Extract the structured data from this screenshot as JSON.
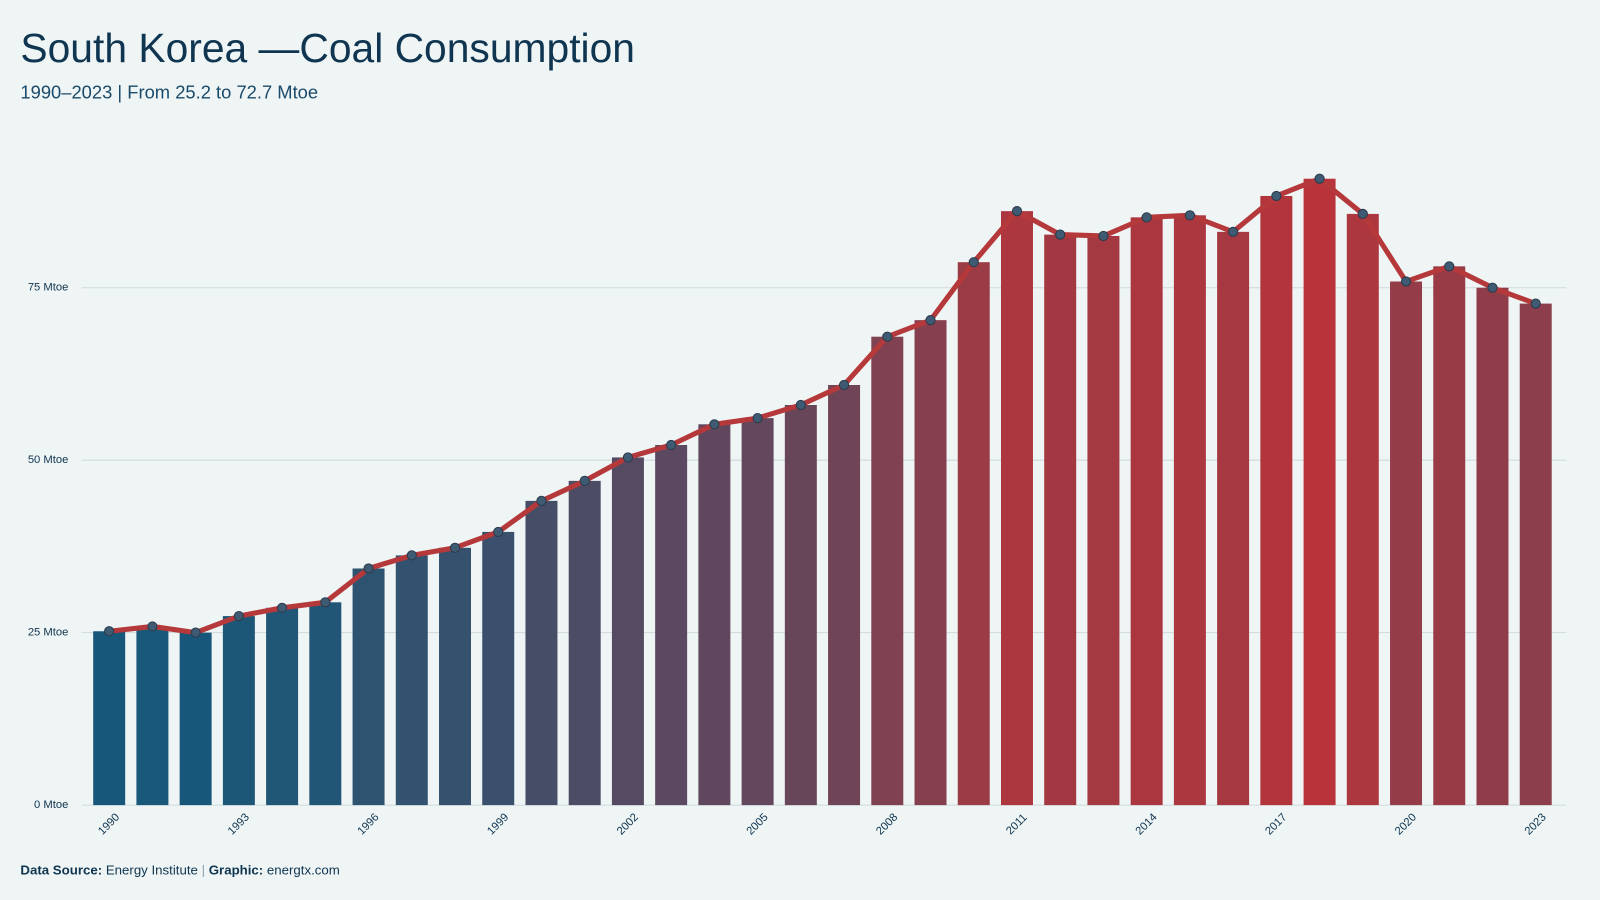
{
  "chart_data": {
    "type": "bar",
    "title": "South Korea —Coal Consumption",
    "subtitle": "1990–2023 | From 25.2 to 72.7 Mtoe",
    "x": [
      1990,
      1991,
      1992,
      1993,
      1994,
      1995,
      1996,
      1997,
      1998,
      1999,
      2000,
      2001,
      2002,
      2003,
      2004,
      2005,
      2006,
      2007,
      2008,
      2009,
      2010,
      2011,
      2012,
      2013,
      2014,
      2015,
      2016,
      2017,
      2018,
      2019,
      2020,
      2021,
      2022,
      2023
    ],
    "values": [
      25.2,
      25.9,
      25.0,
      27.4,
      28.6,
      29.4,
      34.3,
      36.2,
      37.3,
      39.6,
      44.1,
      47.0,
      50.4,
      52.2,
      55.2,
      56.1,
      58.0,
      60.9,
      67.9,
      70.3,
      78.7,
      86.1,
      82.7,
      82.5,
      85.2,
      85.5,
      83.1,
      88.3,
      90.8,
      85.7,
      75.9,
      78.1,
      75.0,
      72.7
    ],
    "xticks": [
      1990,
      1993,
      1996,
      1999,
      2002,
      2005,
      2008,
      2011,
      2014,
      2017,
      2020,
      2023
    ],
    "ylim": [
      0,
      96
    ],
    "yticks": [
      {
        "value": 0,
        "label": "0 Mtoe"
      },
      {
        "value": 25,
        "label": "25 Mtoe"
      },
      {
        "value": 50,
        "label": "50 Mtoe"
      },
      {
        "value": 75,
        "label": "75 Mtoe"
      }
    ],
    "grid": true,
    "color_scale": [
      "#17587a",
      "#b8343a"
    ],
    "line_color": "#b5393b",
    "marker_color": "#3f5b74",
    "footer": {
      "source_label": "Data Source:",
      "source": "Energy Institute",
      "separator": "|",
      "graphic_label": "Graphic:",
      "graphic": "energtx.com"
    }
  }
}
